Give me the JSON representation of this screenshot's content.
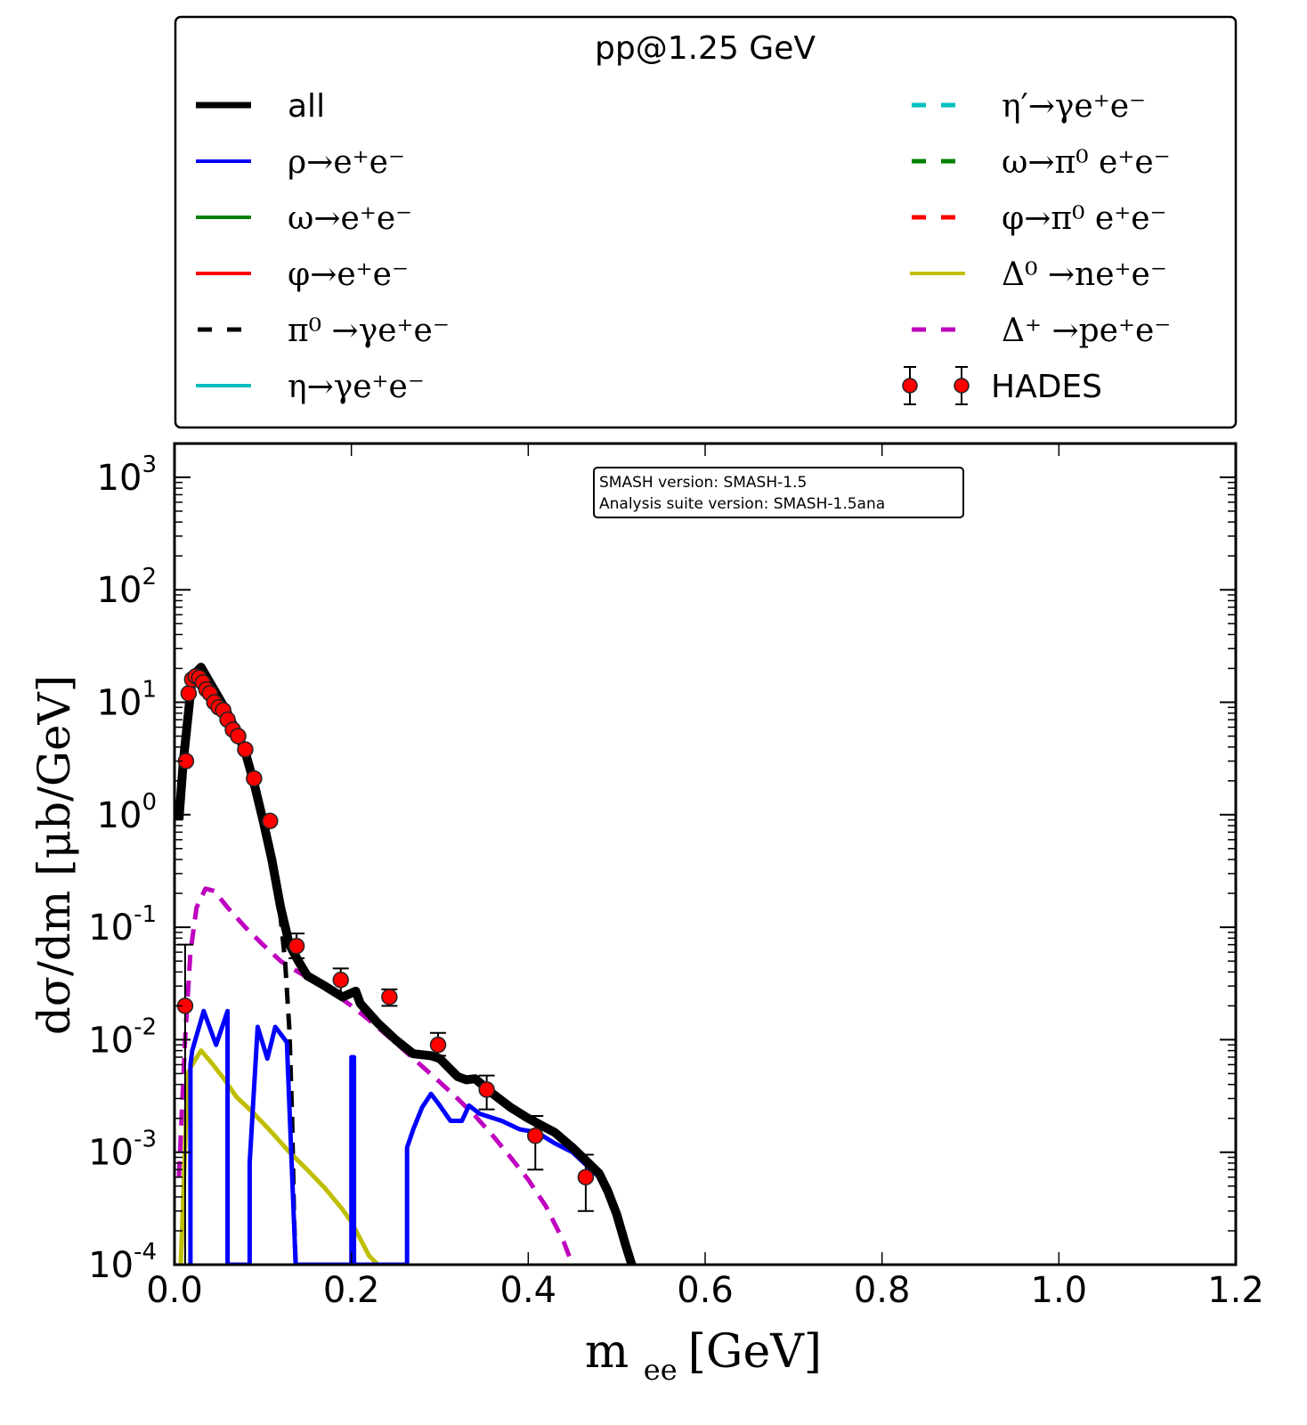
{
  "chart_data": {
    "type": "line",
    "title": "pp@1.25 GeV",
    "xlabel": "m_ee [GeV]",
    "ylabel": "dσ/dm [μb/GeV]",
    "xlim": [
      0.0,
      1.2
    ],
    "ylim": [
      0.0001,
      2000
    ],
    "yscale": "log",
    "grid": false,
    "legend_placement": "above-plot",
    "x_ticks": [
      "0.0",
      "0.2",
      "0.4",
      "0.6",
      "0.8",
      "1.0",
      "1.2"
    ],
    "x_tick_values": [
      0.0,
      0.2,
      0.4,
      0.6,
      0.8,
      1.0,
      1.2
    ],
    "y_ticks": [
      {
        "base": "10",
        "exp": "3",
        "value": 1000
      },
      {
        "base": "10",
        "exp": "2",
        "value": 100
      },
      {
        "base": "10",
        "exp": "1",
        "value": 10
      },
      {
        "base": "10",
        "exp": "0",
        "value": 1
      },
      {
        "base": "10",
        "exp": "-1",
        "value": 0.1
      },
      {
        "base": "10",
        "exp": "-2",
        "value": 0.01
      },
      {
        "base": "10",
        "exp": "-3",
        "value": 0.001
      },
      {
        "base": "10",
        "exp": "-4",
        "value": 0.0001
      }
    ],
    "annotation": {
      "lines": [
        "SMASH version: SMASH-1.5",
        "Analysis suite version: SMASH-1.5ana"
      ],
      "placement": "top-center"
    },
    "legend": {
      "left": [
        {
          "label": "all",
          "color": "#000000",
          "style": "solid",
          "thick": true,
          "font": "sans"
        },
        {
          "label": "ρ→e⁺e⁻",
          "color": "#0000ff",
          "style": "solid",
          "font": "math"
        },
        {
          "label": "ω→e⁺e⁻",
          "color": "#008000",
          "style": "solid",
          "font": "math"
        },
        {
          "label": "φ→e⁺e⁻",
          "color": "#ff0000",
          "style": "solid",
          "font": "math"
        },
        {
          "label": "π⁰ →γe⁺e⁻",
          "color": "#000000",
          "style": "dashed",
          "font": "math"
        },
        {
          "label": "η→γe⁺e⁻",
          "color": "#00bfbf",
          "style": "solid",
          "font": "math"
        }
      ],
      "right": [
        {
          "label": "η′→γe⁺e⁻",
          "color": "#00bfbf",
          "style": "dashed",
          "font": "math"
        },
        {
          "label": "ω→π⁰ e⁺e⁻",
          "color": "#008000",
          "style": "dashed",
          "font": "math"
        },
        {
          "label": "φ→π⁰ e⁺e⁻",
          "color": "#ff0000",
          "style": "dashed",
          "font": "math"
        },
        {
          "label": "Δ⁰ →ne⁺e⁻",
          "color": "#bfbf00",
          "style": "solid",
          "font": "math"
        },
        {
          "label": "Δ⁺ →pe⁺e⁻",
          "color": "#bf00bf",
          "style": "dashed",
          "font": "math"
        },
        {
          "label": "HADES",
          "color": "#ff0000",
          "style": "marker",
          "font": "sans"
        }
      ]
    },
    "series": [
      {
        "name": "Δ⁺ →pe⁺e⁻",
        "color": "#bf00bf",
        "style": "dashed",
        "x": [
          0.005,
          0.008,
          0.012,
          0.018,
          0.025,
          0.035,
          0.045,
          0.06,
          0.08,
          0.1,
          0.12,
          0.14,
          0.16,
          0.18,
          0.2,
          0.22,
          0.24,
          0.26,
          0.28,
          0.3,
          0.32,
          0.34,
          0.36,
          0.38,
          0.4,
          0.42,
          0.44,
          0.45
        ],
        "y": [
          0.0006,
          0.002,
          0.01,
          0.06,
          0.15,
          0.22,
          0.21,
          0.15,
          0.1,
          0.07,
          0.05,
          0.04,
          0.032,
          0.026,
          0.02,
          0.015,
          0.011,
          0.008,
          0.0058,
          0.0042,
          0.003,
          0.0021,
          0.0014,
          0.0009,
          0.00057,
          0.00033,
          0.00016,
          0.0001
        ]
      },
      {
        "name": "π⁰ →γe⁺e⁻",
        "color": "#000000",
        "style": "dashed",
        "x": [
          0.005,
          0.01,
          0.02,
          0.03,
          0.04,
          0.05,
          0.06,
          0.07,
          0.08,
          0.09,
          0.1,
          0.11,
          0.12,
          0.125,
          0.13,
          0.133,
          0.135,
          0.137
        ],
        "y": [
          0.9,
          3.0,
          17.0,
          20.0,
          15.0,
          11.0,
          8.0,
          5.5,
          3.6,
          1.9,
          0.9,
          0.38,
          0.12,
          0.05,
          0.012,
          0.002,
          0.0003,
          0.0001
        ]
      },
      {
        "name": "Δ⁰ →ne⁺e⁻",
        "color": "#bfbf00",
        "style": "solid",
        "x": [
          0.007,
          0.015,
          0.02,
          0.03,
          0.04,
          0.055,
          0.07,
          0.09,
          0.11,
          0.13,
          0.15,
          0.17,
          0.19,
          0.2,
          0.21,
          0.22,
          0.23
        ],
        "y": [
          0.0001,
          0.005,
          0.006,
          0.008,
          0.0065,
          0.0046,
          0.0031,
          0.0022,
          0.0015,
          0.001,
          0.0007,
          0.00048,
          0.00031,
          0.00024,
          0.00017,
          0.00012,
          0.0001
        ]
      },
      {
        "name": "ρ→e⁺e⁻",
        "color": "#0000ff",
        "style": "solid",
        "x": [
          0.018,
          0.018,
          0.02,
          0.033,
          0.047,
          0.06,
          0.06,
          0.085,
          0.085,
          0.094,
          0.105,
          0.114,
          0.127,
          0.137,
          0.137,
          0.2,
          0.2,
          0.203,
          0.203,
          0.263,
          0.263,
          0.27,
          0.28,
          0.29,
          0.3,
          0.312,
          0.325,
          0.333,
          0.345,
          0.37,
          0.39,
          0.41,
          0.43,
          0.45,
          0.48,
          0.49,
          0.5,
          0.51,
          0.517
        ],
        "y": [
          0.0001,
          0.006,
          0.008,
          0.018,
          0.009,
          0.018,
          0.0001,
          0.0001,
          0.0008,
          0.013,
          0.0068,
          0.013,
          0.0095,
          0.0001,
          0.0001,
          0.0001,
          0.007,
          0.007,
          0.0001,
          0.0001,
          0.0011,
          0.0016,
          0.0025,
          0.0033,
          0.0026,
          0.0019,
          0.0019,
          0.0026,
          0.0022,
          0.0019,
          0.0016,
          0.0015,
          0.0012,
          0.001,
          0.0006,
          0.00045,
          0.0003,
          0.00015,
          0.0001
        ]
      },
      {
        "name": "all",
        "color": "#000000",
        "style": "solid",
        "x": [
          0.005,
          0.01,
          0.02,
          0.03,
          0.04,
          0.05,
          0.06,
          0.07,
          0.08,
          0.09,
          0.1,
          0.11,
          0.12,
          0.13,
          0.14,
          0.15,
          0.17,
          0.19,
          0.2,
          0.205,
          0.21,
          0.23,
          0.25,
          0.27,
          0.29,
          0.3,
          0.32,
          0.33,
          0.34,
          0.36,
          0.38,
          0.4,
          0.43,
          0.45,
          0.48,
          0.49,
          0.5,
          0.51,
          0.517
        ],
        "y": [
          0.9,
          3.0,
          17.0,
          20.5,
          15.0,
          11.0,
          8.0,
          5.5,
          3.6,
          1.9,
          0.9,
          0.4,
          0.15,
          0.07,
          0.05,
          0.037,
          0.03,
          0.024,
          0.026,
          0.027,
          0.021,
          0.014,
          0.01,
          0.0075,
          0.0072,
          0.0068,
          0.0047,
          0.0044,
          0.0045,
          0.0033,
          0.0025,
          0.002,
          0.0015,
          0.0011,
          0.00065,
          0.00045,
          0.00028,
          0.00015,
          0.0001
        ]
      }
    ],
    "hades": {
      "name": "HADES",
      "color": "#ff0000",
      "x": [
        0.012,
        0.013,
        0.016,
        0.02,
        0.024,
        0.028,
        0.032,
        0.036,
        0.04,
        0.045,
        0.05,
        0.055,
        0.06,
        0.066,
        0.072,
        0.08,
        0.09,
        0.108,
        0.138,
        0.188,
        0.243,
        0.298,
        0.353,
        0.408,
        0.465
      ],
      "y": [
        0.02,
        3.0,
        12.0,
        16.0,
        17.0,
        16.5,
        15.0,
        13.0,
        12.0,
        10.0,
        9.0,
        8.5,
        7.0,
        5.7,
        5.0,
        3.8,
        2.1,
        0.88,
        0.068,
        0.034,
        0.024,
        0.009,
        0.0036,
        0.0014,
        0.0006
      ],
      "yerr_low": [
        0.0199,
        0,
        0,
        0,
        0,
        0,
        0,
        0,
        0,
        0,
        0,
        0,
        0,
        0,
        0,
        0,
        0,
        0,
        0.015,
        0.008,
        0.004,
        0.0018,
        0.0012,
        0.0007,
        0.0003
      ],
      "yerr_high": [
        0.05,
        0,
        0,
        0,
        0,
        0,
        0,
        0,
        0,
        0,
        0,
        0,
        0,
        0,
        0,
        0,
        0,
        0,
        0.02,
        0.009,
        0.004,
        0.0025,
        0.0012,
        0.0007,
        0.00035
      ]
    }
  }
}
